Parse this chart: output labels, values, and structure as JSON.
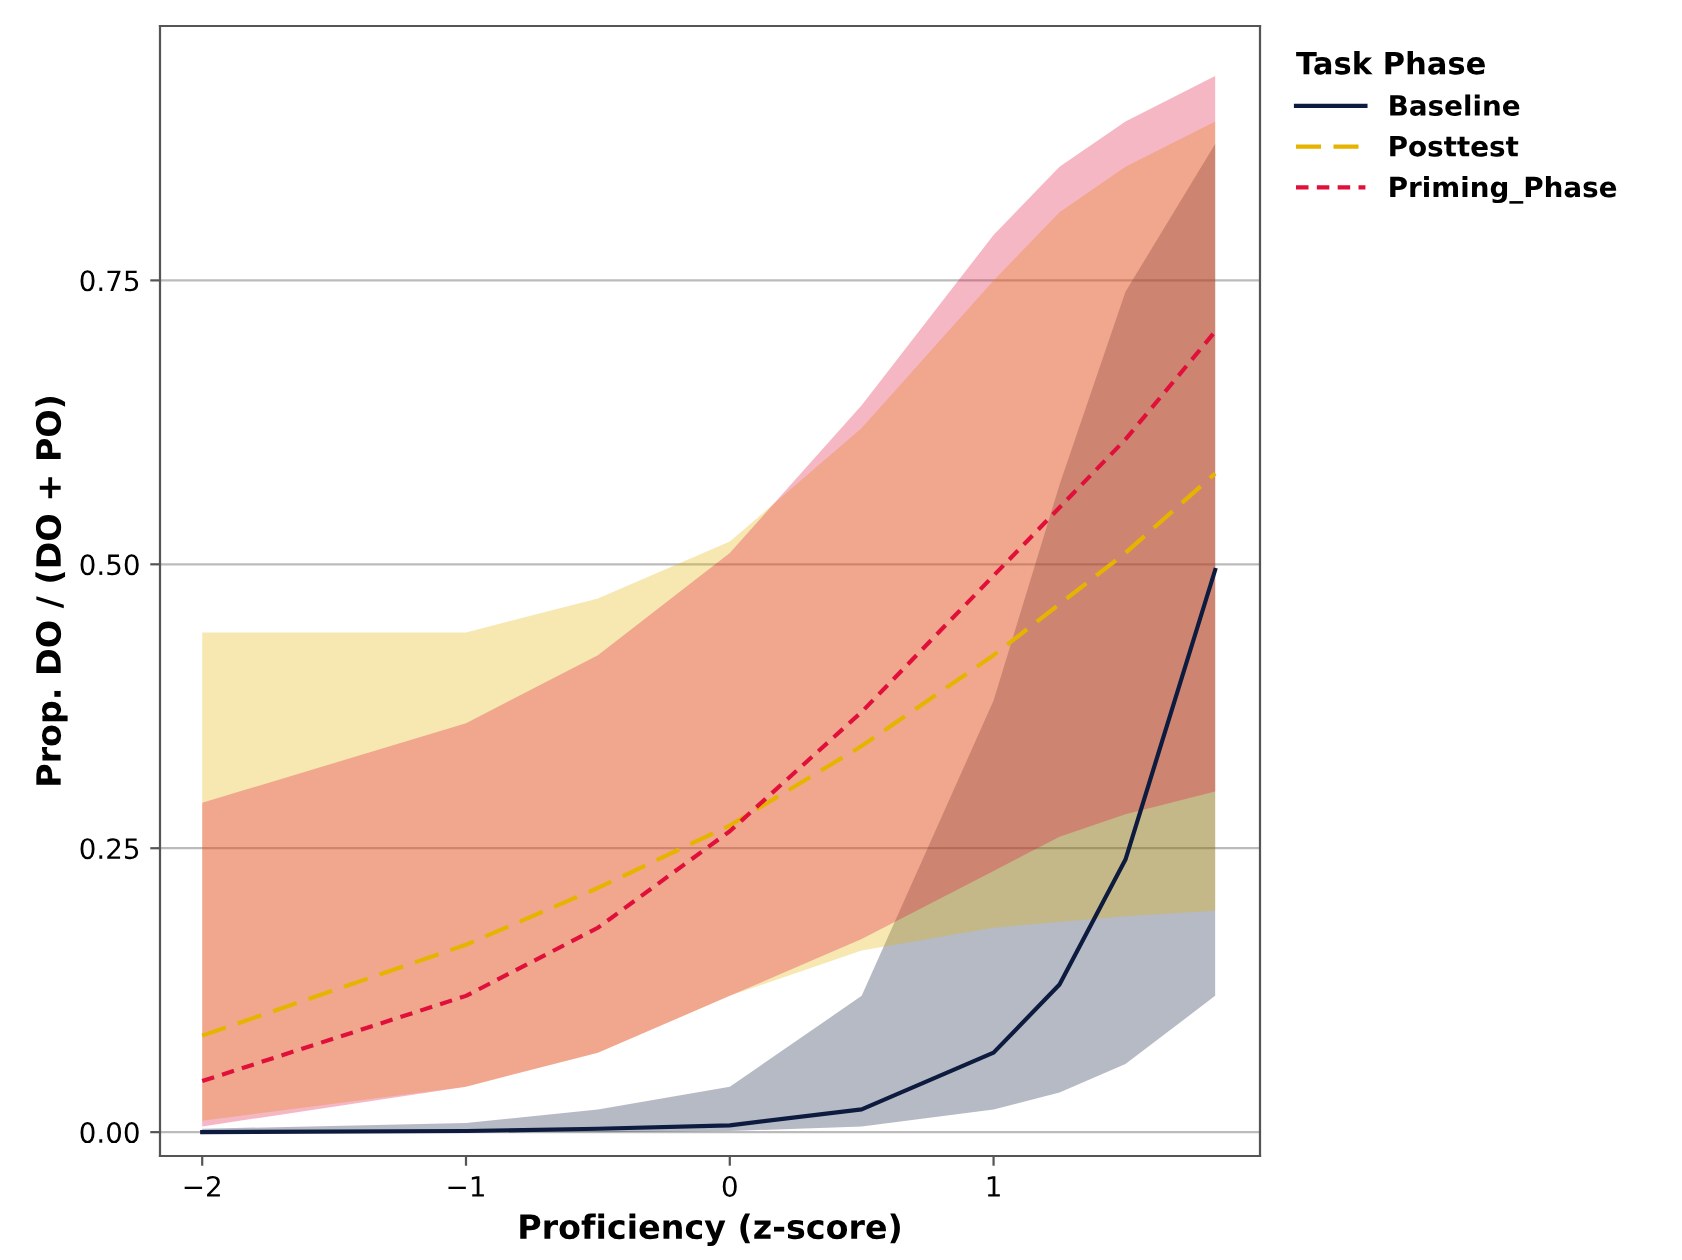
{
  "chart_data": {
    "type": "line",
    "xlabel": "Proficiency (z-score)",
    "ylabel": "Prop. DO / (DO + PO)",
    "legend_title": "Task Phase",
    "legend": "right",
    "x": [
      -2,
      -1,
      -0.5,
      0,
      0.5,
      1,
      1.25,
      1.5,
      1.84
    ],
    "series": [
      {
        "name": "Baseline",
        "color": "#0d1b3e",
        "line_style": "solid",
        "values": [
          0,
          0.001,
          0.003,
          0.006,
          0.02,
          0.07,
          0.13,
          0.24,
          0.495
        ],
        "lower": [
          0,
          0,
          0,
          0.001,
          0.005,
          0.02,
          0.035,
          0.06,
          0.12
        ],
        "upper": [
          0.003,
          0.008,
          0.02,
          0.04,
          0.12,
          0.38,
          0.57,
          0.74,
          0.87
        ]
      },
      {
        "name": "Posttest",
        "color": "#e6b400",
        "line_style": "dashed",
        "values": [
          0.085,
          0.165,
          0.215,
          0.27,
          0.34,
          0.42,
          0.465,
          0.51,
          0.58
        ],
        "lower": [
          0.01,
          0.04,
          0.07,
          0.12,
          0.16,
          0.18,
          0.185,
          0.19,
          0.195
        ],
        "upper": [
          0.44,
          0.44,
          0.47,
          0.52,
          0.62,
          0.75,
          0.81,
          0.85,
          0.89
        ]
      },
      {
        "name": "Priming_Phase",
        "color": "#e0103a",
        "line_style": "dotted",
        "values": [
          0.045,
          0.12,
          0.18,
          0.265,
          0.37,
          0.49,
          0.55,
          0.61,
          0.705
        ],
        "lower": [
          0.005,
          0.04,
          0.07,
          0.12,
          0.17,
          0.23,
          0.26,
          0.28,
          0.3
        ],
        "upper": [
          0.29,
          0.36,
          0.42,
          0.51,
          0.64,
          0.79,
          0.85,
          0.89,
          0.93
        ]
      }
    ],
    "xlim": [
      -2.16,
      2.01
    ],
    "ylim": [
      -0.021,
      0.974
    ],
    "xticks": [
      {
        "value": -2,
        "label": "−2"
      },
      {
        "value": -1,
        "label": "−1"
      },
      0,
      1
    ],
    "yticks": [
      {
        "value": 0,
        "label": "0.00"
      },
      {
        "value": 0.25,
        "label": "0.25"
      },
      {
        "value": 0.5,
        "label": "0.50"
      },
      {
        "value": 0.75,
        "label": "0.75"
      }
    ],
    "grid": "y"
  }
}
